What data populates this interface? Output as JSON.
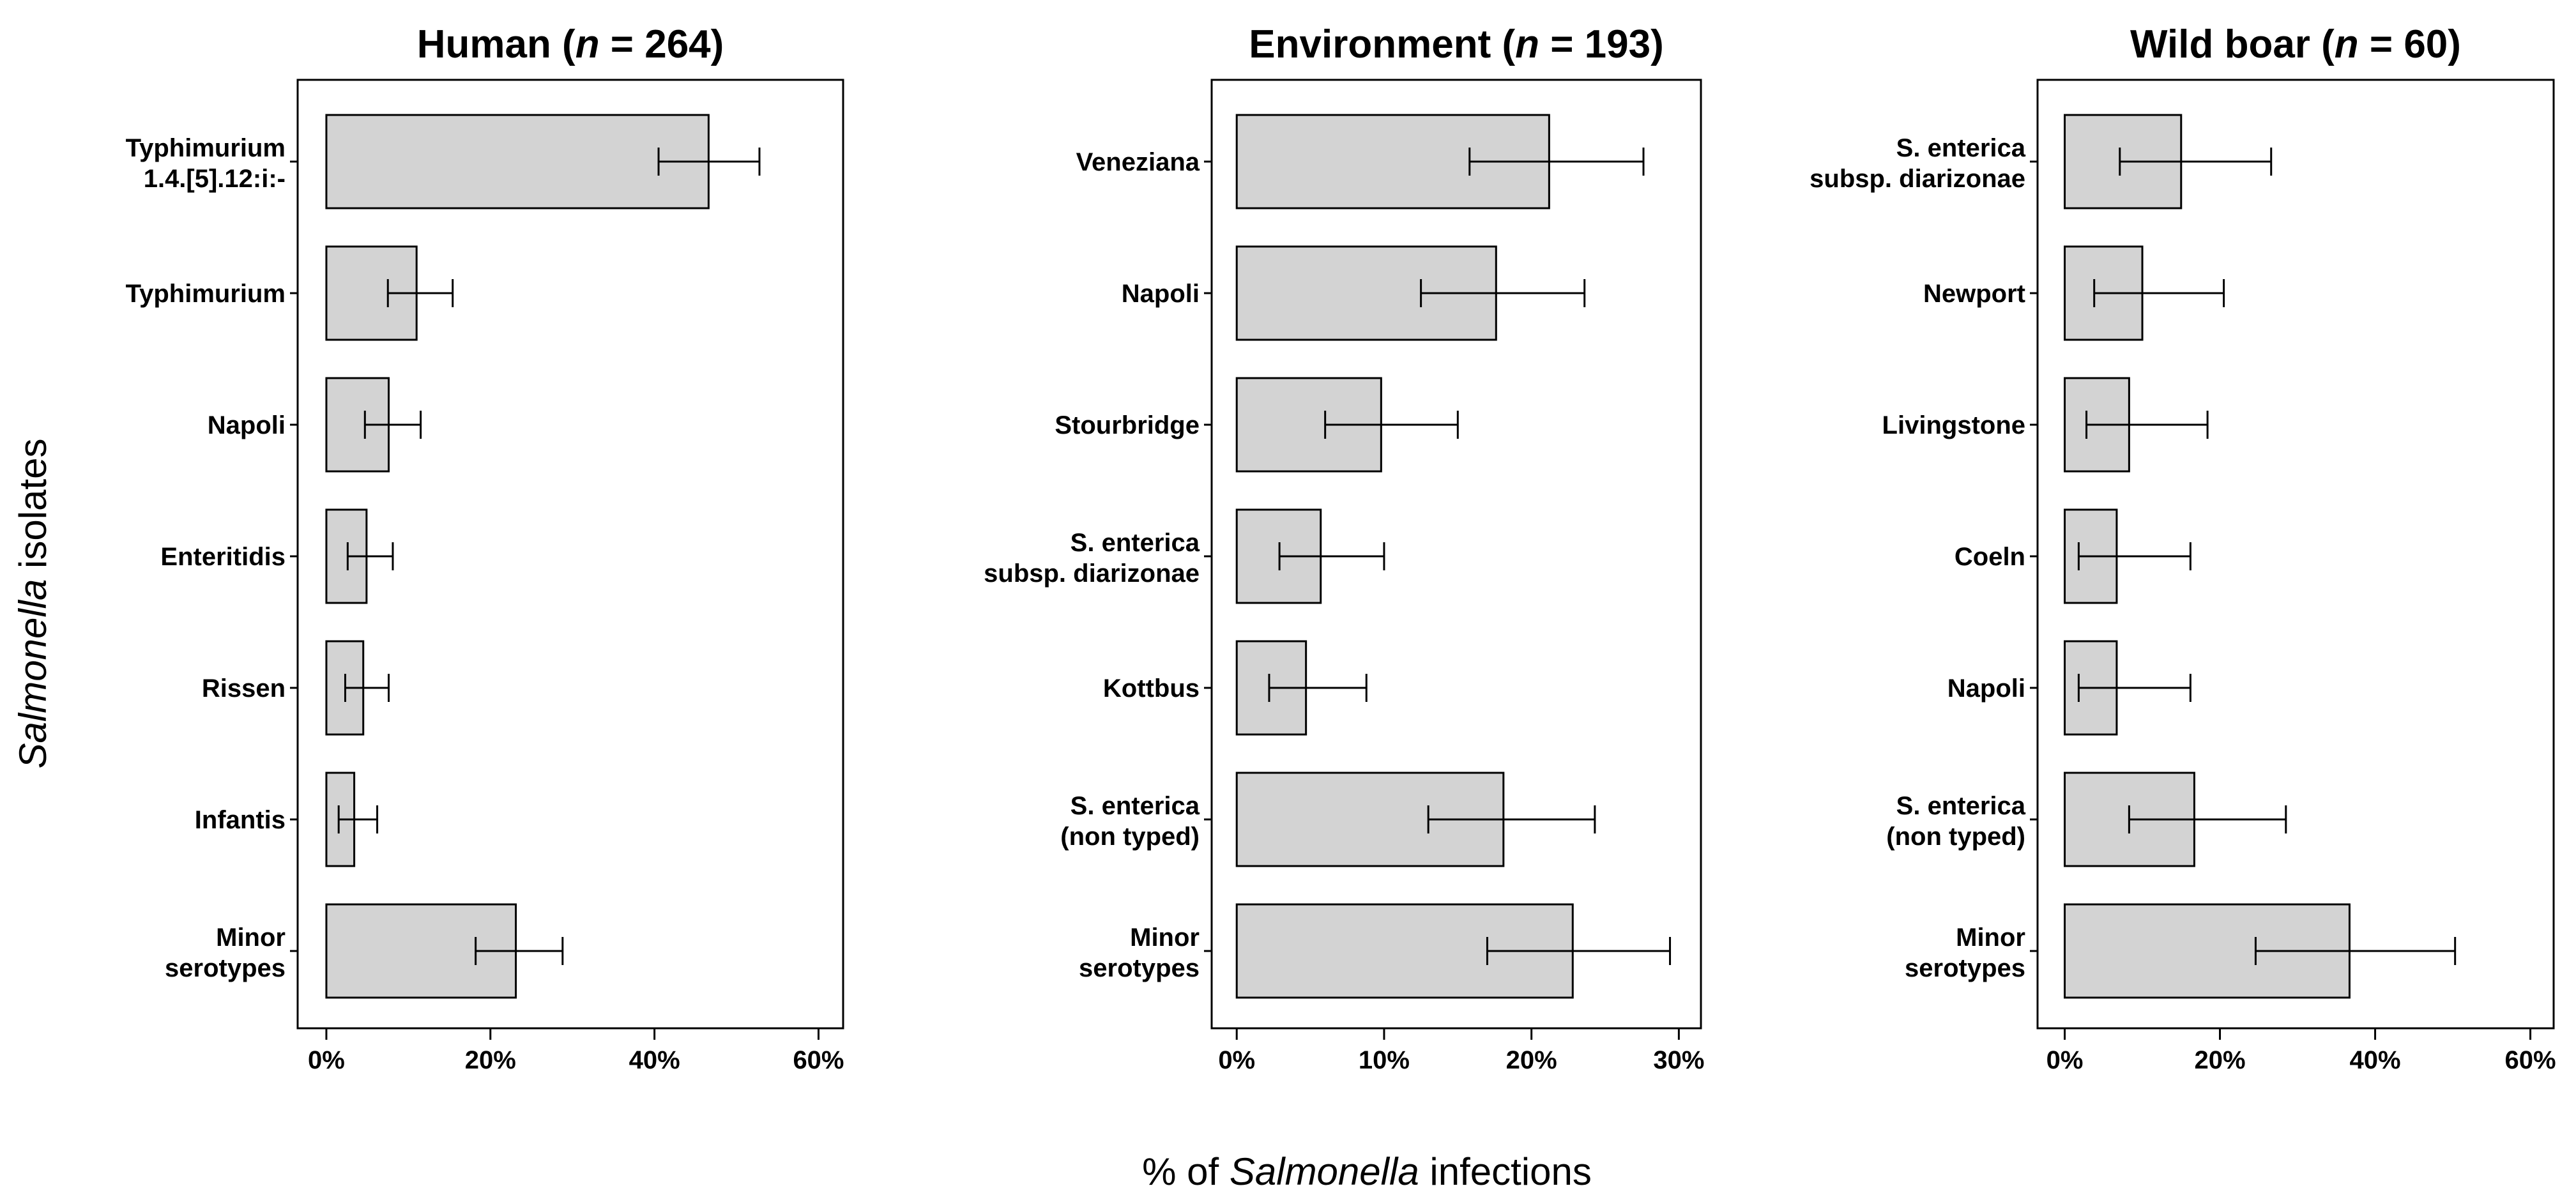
{
  "figure": {
    "y_label_italic": "Salmonella",
    "y_label_rest": " isolates",
    "x_label_pre": "% of ",
    "x_label_italic": "Salmonella",
    "x_label_post": " infections"
  },
  "chart_data": [
    {
      "type": "bar",
      "orientation": "horizontal",
      "title_pre": "Human (",
      "title_n": "n",
      "title_post": " = 264)",
      "categories": [
        [
          "Typhimurium",
          "1.4.[5].12:i:-"
        ],
        [
          "Typhimurium"
        ],
        [
          "Napoli"
        ],
        [
          "Enteritidis"
        ],
        [
          "Rissen"
        ],
        [
          "Infantis"
        ],
        [
          "Minor",
          "serotypes"
        ]
      ],
      "values": [
        46.6,
        11.0,
        7.6,
        4.9,
        4.5,
        3.4,
        23.1
      ],
      "error_low": [
        40.5,
        7.5,
        4.7,
        2.6,
        2.3,
        1.5,
        18.2
      ],
      "error_high": [
        52.8,
        15.4,
        11.5,
        8.1,
        7.6,
        6.2,
        28.8
      ],
      "xlim": [
        -3.5,
        63
      ],
      "ticks": [
        0,
        20,
        40,
        60
      ],
      "tick_labels": [
        "0%",
        "20%",
        "40%",
        "60%"
      ]
    },
    {
      "type": "bar",
      "orientation": "horizontal",
      "title_pre": "Environment (",
      "title_n": "n",
      "title_post": " = 193)",
      "categories": [
        [
          "Veneziana"
        ],
        [
          "Napoli"
        ],
        [
          "Stourbridge"
        ],
        [
          "S. enterica",
          "subsp. diarizonae"
        ],
        [
          "Kottbus"
        ],
        [
          "S. enterica",
          "(non typed)"
        ],
        [
          "Minor",
          "serotypes"
        ]
      ],
      "values": [
        21.2,
        17.6,
        9.8,
        5.7,
        4.7,
        18.1,
        22.8
      ],
      "error_low": [
        15.8,
        12.5,
        6.0,
        2.9,
        2.2,
        13.0,
        17.0
      ],
      "error_high": [
        27.6,
        23.6,
        15.0,
        10.0,
        8.8,
        24.3,
        29.4
      ],
      "xlim": [
        -1.7,
        31.5
      ],
      "ticks": [
        0,
        10,
        20,
        30
      ],
      "tick_labels": [
        "0%",
        "10%",
        "20%",
        "30%"
      ]
    },
    {
      "type": "bar",
      "orientation": "horizontal",
      "title_pre": "Wild boar (",
      "title_n": "n",
      "title_post": " = 60)",
      "categories": [
        [
          "S. enterica",
          "subsp. diarizonae"
        ],
        [
          "Newport"
        ],
        [
          "Livingstone"
        ],
        [
          "Coeln"
        ],
        [
          "Napoli"
        ],
        [
          "S. enterica",
          "(non typed)"
        ],
        [
          "Minor",
          "serotypes"
        ]
      ],
      "values": [
        15.0,
        10.0,
        8.3,
        6.7,
        6.7,
        16.7,
        36.7
      ],
      "error_low": [
        7.1,
        3.8,
        2.8,
        1.8,
        1.8,
        8.3,
        24.6
      ],
      "error_high": [
        26.6,
        20.5,
        18.4,
        16.2,
        16.2,
        28.5,
        50.3
      ],
      "xlim": [
        -3.5,
        63
      ],
      "ticks": [
        0,
        20,
        40,
        60
      ],
      "tick_labels": [
        "0%",
        "20%",
        "40%",
        "60%"
      ]
    }
  ]
}
